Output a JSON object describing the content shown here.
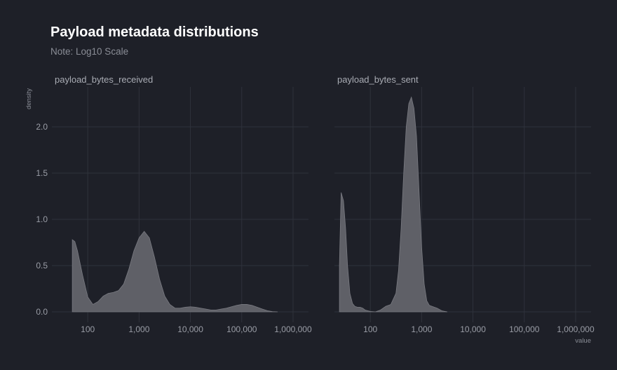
{
  "title": "Payload metadata distributions",
  "subtitle": "Note: Log10 Scale",
  "chart_data": [
    {
      "type": "area",
      "facet": "payload_bytes_received",
      "xlabel": "",
      "ylabel": "density",
      "x_scale": "log10",
      "xlim": [
        20,
        2000000
      ],
      "ylim": [
        0,
        2.4
      ],
      "x_ticks": [
        100,
        1000,
        10000,
        100000,
        1000000
      ],
      "x_tick_labels": [
        "100",
        "1,000",
        "10,000",
        "100,000",
        "1,000,000"
      ],
      "y_ticks": [
        0,
        0.5,
        1,
        1.5,
        2
      ],
      "y_tick_labels": [
        "0.0",
        "0.5",
        "1.0",
        "1.5",
        "2.0"
      ],
      "grid": true,
      "x": [
        50,
        56,
        63,
        79,
        100,
        126,
        158,
        200,
        251,
        316,
        398,
        501,
        631,
        794,
        1000,
        1259,
        1585,
        1995,
        2512,
        3162,
        3981,
        5012,
        6310,
        7943,
        10000,
        12589,
        15849,
        19953,
        25119,
        31623,
        39811,
        50119,
        63096,
        79433,
        100000,
        125893,
        158489,
        199526,
        251189,
        316228,
        398107,
        501187
      ],
      "y": [
        0.78,
        0.76,
        0.66,
        0.4,
        0.16,
        0.08,
        0.11,
        0.17,
        0.2,
        0.21,
        0.23,
        0.3,
        0.46,
        0.66,
        0.8,
        0.87,
        0.8,
        0.59,
        0.35,
        0.17,
        0.08,
        0.04,
        0.04,
        0.05,
        0.055,
        0.05,
        0.04,
        0.03,
        0.02,
        0.02,
        0.03,
        0.04,
        0.055,
        0.07,
        0.08,
        0.08,
        0.07,
        0.05,
        0.03,
        0.012,
        0.003,
        0
      ]
    },
    {
      "type": "area",
      "facet": "payload_bytes_sent",
      "xlabel": "value",
      "ylabel": "",
      "x_scale": "log10",
      "xlim": [
        20,
        2000000
      ],
      "ylim": [
        0,
        2.4
      ],
      "x_ticks": [
        100,
        1000,
        10000,
        100000,
        1000000
      ],
      "x_tick_labels": [
        "100",
        "1,000",
        "10,000",
        "100,000",
        "1,000,000"
      ],
      "y_ticks": [
        0,
        0.5,
        1,
        1.5,
        2
      ],
      "grid": true,
      "x": [
        25,
        27,
        30,
        33,
        36,
        40,
        45,
        50,
        56,
        63,
        71,
        79,
        100,
        126,
        158,
        200,
        251,
        316,
        355,
        398,
        447,
        501,
        562,
        631,
        708,
        794,
        891,
        1000,
        1122,
        1259,
        1413,
        1585,
        1995,
        2512,
        3162
      ],
      "y": [
        0.5,
        1.29,
        1.2,
        0.9,
        0.5,
        0.2,
        0.09,
        0.06,
        0.05,
        0.05,
        0.04,
        0.02,
        0.005,
        0.0,
        0.02,
        0.06,
        0.08,
        0.2,
        0.45,
        0.9,
        1.5,
        2.0,
        2.25,
        2.32,
        2.2,
        1.9,
        1.3,
        0.7,
        0.3,
        0.12,
        0.07,
        0.06,
        0.04,
        0.01,
        0
      ]
    }
  ]
}
